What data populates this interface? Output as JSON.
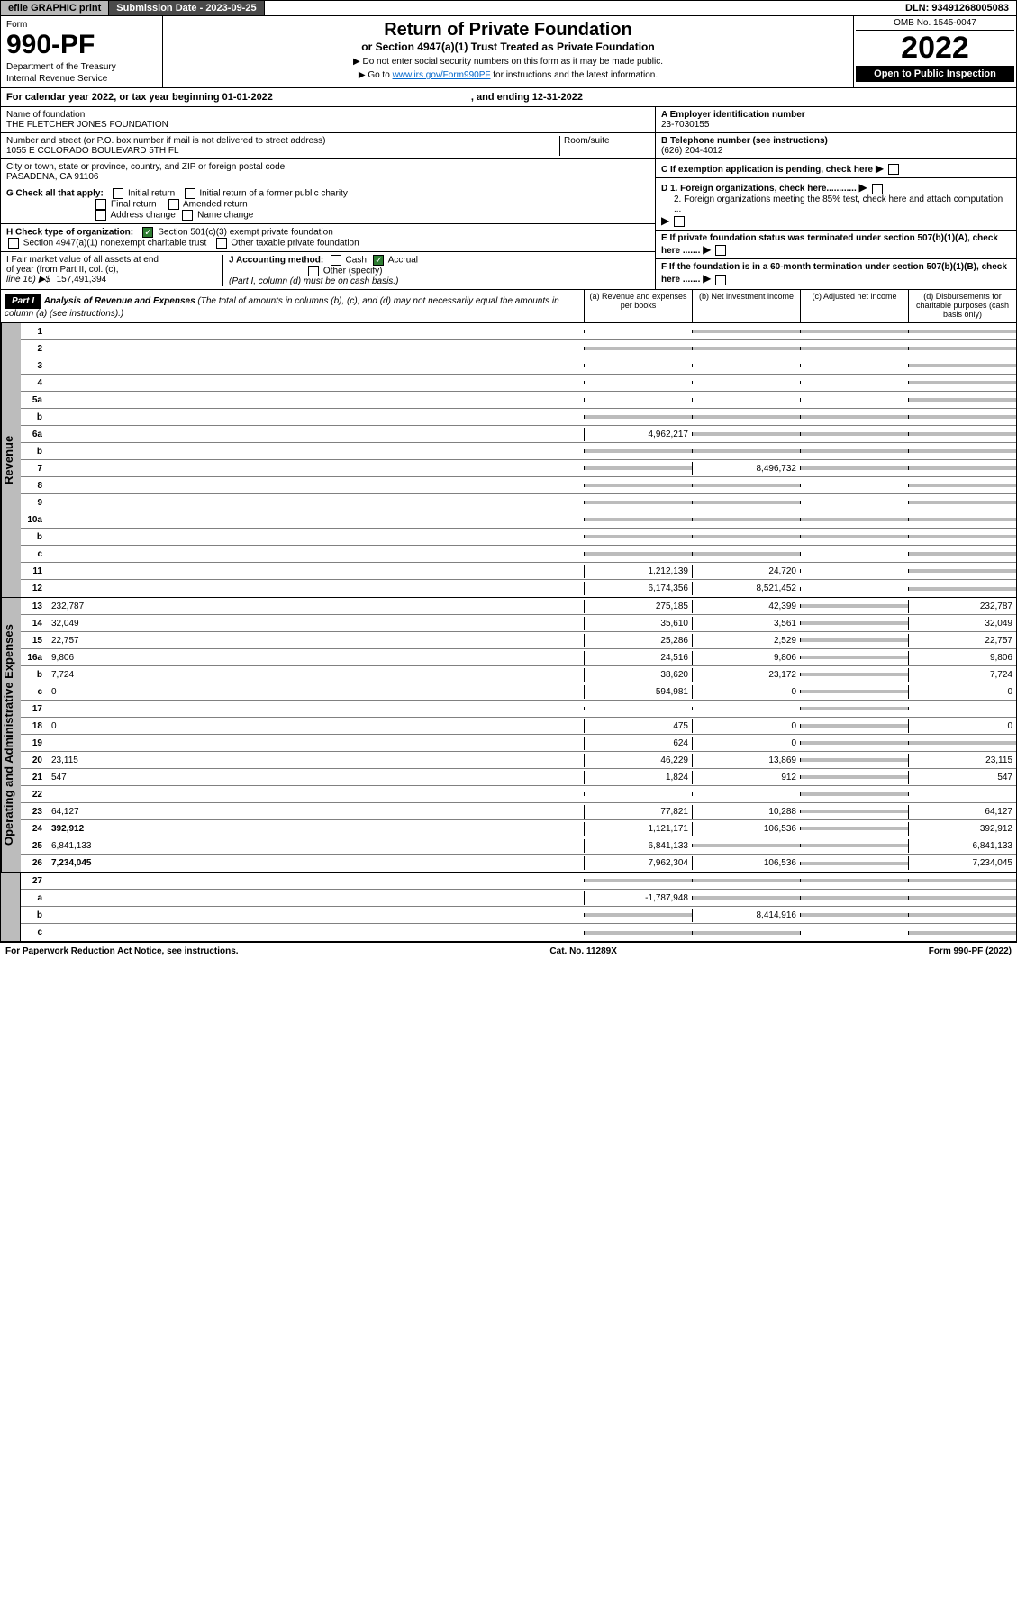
{
  "topbar": {
    "efile": "efile GRAPHIC print",
    "sub_label": "Submission Date - 2023-09-25",
    "dln": "DLN: 93491268005083"
  },
  "header": {
    "form_word": "Form",
    "form_num": "990-PF",
    "dept1": "Department of the Treasury",
    "dept2": "Internal Revenue Service",
    "title": "Return of Private Foundation",
    "subtitle": "or Section 4947(a)(1) Trust Treated as Private Foundation",
    "note1": "▶ Do not enter social security numbers on this form as it may be made public.",
    "note2_pre": "▶ Go to ",
    "note2_link": "www.irs.gov/Form990PF",
    "note2_post": " for instructions and the latest information.",
    "omb": "OMB No. 1545-0047",
    "year": "2022",
    "open": "Open to Public Inspection"
  },
  "cal": {
    "pre": "For calendar year 2022, or tax year beginning 01-01-2022",
    "end": ", and ending 12-31-2022"
  },
  "left": {
    "name_lbl": "Name of foundation",
    "name": "THE FLETCHER JONES FOUNDATION",
    "addr_lbl": "Number and street (or P.O. box number if mail is not delivered to street address)",
    "addr": "1055 E COLORADO BOULEVARD 5TH FL",
    "room_lbl": "Room/suite",
    "city_lbl": "City or town, state or province, country, and ZIP or foreign postal code",
    "city": "PASADENA, CA  91106",
    "g_lbl": "G Check all that apply:",
    "g_opts": [
      "Initial return",
      "Final return",
      "Address change",
      "Initial return of a former public charity",
      "Amended return",
      "Name change"
    ],
    "h_lbl": "H Check type of organization:",
    "h_opt1": "Section 501(c)(3) exempt private foundation",
    "h_opt2": "Section 4947(a)(1) nonexempt charitable trust",
    "h_opt3": "Other taxable private foundation",
    "i_lbl1": "I Fair market value of all assets at end",
    "i_lbl2": "of year (from Part II, col. (c),",
    "i_lbl3": "line 16) ▶$ ",
    "i_val": "157,491,394",
    "j_lbl": "J Accounting method:",
    "j_cash": "Cash",
    "j_accrual": "Accrual",
    "j_other": "Other (specify)",
    "j_note": "(Part I, column (d) must be on cash basis.)"
  },
  "right": {
    "a_lbl": "A Employer identification number",
    "a_val": "23-7030155",
    "b_lbl": "B Telephone number (see instructions)",
    "b_val": "(626) 204-4012",
    "c_lbl": "C If exemption application is pending, check here",
    "d1_lbl": "D 1. Foreign organizations, check here............",
    "d2_lbl": "2. Foreign organizations meeting the 85% test, check here and attach computation ...",
    "e_lbl": "E  If private foundation status was terminated under section 507(b)(1)(A), check here .......",
    "f_lbl": "F  If the foundation is in a 60-month termination under section 507(b)(1)(B), check here ......."
  },
  "part1": {
    "hdr": "Part I",
    "title": "Analysis of Revenue and Expenses",
    "title_note": " (The total of amounts in columns (b), (c), and (d) may not necessarily equal the amounts in column (a) (see instructions).)",
    "cols": [
      "(a)   Revenue and expenses per books",
      "(b)   Net investment income",
      "(c)   Adjusted net income",
      "(d)   Disbursements for charitable purposes (cash basis only)"
    ]
  },
  "revenue_label": "Revenue",
  "expense_label": "Operating and Administrative Expenses",
  "rows_rev": [
    {
      "n": "1",
      "d": "",
      "a": "",
      "b": "",
      "c": "",
      "sh": [
        "",
        "c",
        "c",
        "c"
      ]
    },
    {
      "n": "2",
      "d": "",
      "a": "",
      "b": "",
      "c": "",
      "sh": [
        "c",
        "c",
        "c",
        "c"
      ]
    },
    {
      "n": "3",
      "d": "",
      "a": "",
      "b": "",
      "c": "",
      "sh": [
        "",
        "",
        "",
        "c"
      ]
    },
    {
      "n": "4",
      "d": "",
      "a": "",
      "b": "",
      "c": "",
      "sh": [
        "",
        "",
        "",
        "c"
      ]
    },
    {
      "n": "5a",
      "d": "",
      "a": "",
      "b": "",
      "c": "",
      "sh": [
        "",
        "",
        "",
        "c"
      ]
    },
    {
      "n": "b",
      "d": "",
      "a": "",
      "b": "",
      "c": "",
      "sh": [
        "c",
        "c",
        "c",
        "c"
      ]
    },
    {
      "n": "6a",
      "d": "",
      "a": "4,962,217",
      "b": "",
      "c": "",
      "sh": [
        "",
        "c",
        "c",
        "c"
      ]
    },
    {
      "n": "b",
      "d": "",
      "a": "",
      "b": "",
      "c": "",
      "sh": [
        "c",
        "c",
        "c",
        "c"
      ]
    },
    {
      "n": "7",
      "d": "",
      "a": "",
      "b": "8,496,732",
      "c": "",
      "sh": [
        "c",
        "",
        "c",
        "c"
      ]
    },
    {
      "n": "8",
      "d": "",
      "a": "",
      "b": "",
      "c": "",
      "sh": [
        "c",
        "c",
        "",
        "c"
      ]
    },
    {
      "n": "9",
      "d": "",
      "a": "",
      "b": "",
      "c": "",
      "sh": [
        "c",
        "c",
        "",
        "c"
      ]
    },
    {
      "n": "10a",
      "d": "",
      "a": "",
      "b": "",
      "c": "",
      "sh": [
        "c",
        "c",
        "c",
        "c"
      ]
    },
    {
      "n": "b",
      "d": "",
      "a": "",
      "b": "",
      "c": "",
      "sh": [
        "c",
        "c",
        "c",
        "c"
      ]
    },
    {
      "n": "c",
      "d": "",
      "a": "",
      "b": "",
      "c": "",
      "sh": [
        "c",
        "c",
        "",
        "c"
      ]
    },
    {
      "n": "11",
      "d": "",
      "a": "1,212,139",
      "b": "24,720",
      "c": "",
      "sh": [
        "",
        "",
        "",
        "c"
      ]
    },
    {
      "n": "12",
      "d": "",
      "a": "6,174,356",
      "b": "8,521,452",
      "c": "",
      "sh": [
        "",
        "",
        "",
        "c"
      ],
      "bold": true
    }
  ],
  "rows_exp": [
    {
      "n": "13",
      "d": "232,787",
      "a": "275,185",
      "b": "42,399",
      "c": "",
      "sh": [
        "",
        "",
        "c",
        ""
      ]
    },
    {
      "n": "14",
      "d": "32,049",
      "a": "35,610",
      "b": "3,561",
      "c": "",
      "sh": [
        "",
        "",
        "c",
        ""
      ]
    },
    {
      "n": "15",
      "d": "22,757",
      "a": "25,286",
      "b": "2,529",
      "c": "",
      "sh": [
        "",
        "",
        "c",
        ""
      ]
    },
    {
      "n": "16a",
      "d": "9,806",
      "a": "24,516",
      "b": "9,806",
      "c": "",
      "sh": [
        "",
        "",
        "c",
        ""
      ]
    },
    {
      "n": "b",
      "d": "7,724",
      "a": "38,620",
      "b": "23,172",
      "c": "",
      "sh": [
        "",
        "",
        "c",
        ""
      ]
    },
    {
      "n": "c",
      "d": "0",
      "a": "594,981",
      "b": "0",
      "c": "",
      "sh": [
        "",
        "",
        "c",
        ""
      ]
    },
    {
      "n": "17",
      "d": "",
      "a": "",
      "b": "",
      "c": "",
      "sh": [
        "",
        "",
        "c",
        ""
      ]
    },
    {
      "n": "18",
      "d": "0",
      "a": "475",
      "b": "0",
      "c": "",
      "sh": [
        "",
        "",
        "c",
        ""
      ]
    },
    {
      "n": "19",
      "d": "",
      "a": "624",
      "b": "0",
      "c": "",
      "sh": [
        "",
        "",
        "c",
        "c"
      ]
    },
    {
      "n": "20",
      "d": "23,115",
      "a": "46,229",
      "b": "13,869",
      "c": "",
      "sh": [
        "",
        "",
        "c",
        ""
      ]
    },
    {
      "n": "21",
      "d": "547",
      "a": "1,824",
      "b": "912",
      "c": "",
      "sh": [
        "",
        "",
        "c",
        ""
      ]
    },
    {
      "n": "22",
      "d": "",
      "a": "",
      "b": "",
      "c": "",
      "sh": [
        "",
        "",
        "c",
        ""
      ]
    },
    {
      "n": "23",
      "d": "64,127",
      "a": "77,821",
      "b": "10,288",
      "c": "",
      "sh": [
        "",
        "",
        "c",
        ""
      ]
    },
    {
      "n": "24",
      "d": "392,912",
      "a": "1,121,171",
      "b": "106,536",
      "c": "",
      "sh": [
        "",
        "",
        "c",
        ""
      ],
      "bold": true
    },
    {
      "n": "25",
      "d": "6,841,133",
      "a": "6,841,133",
      "b": "",
      "c": "",
      "sh": [
        "",
        "c",
        "c",
        ""
      ]
    },
    {
      "n": "26",
      "d": "7,234,045",
      "a": "7,962,304",
      "b": "106,536",
      "c": "",
      "sh": [
        "",
        "",
        "c",
        ""
      ],
      "bold": true
    }
  ],
  "rows_end": [
    {
      "n": "27",
      "d": "",
      "a": "",
      "b": "",
      "c": "",
      "sh": [
        "c",
        "c",
        "c",
        "c"
      ]
    },
    {
      "n": "a",
      "d": "",
      "a": "-1,787,948",
      "b": "",
      "c": "",
      "sh": [
        "",
        "c",
        "c",
        "c"
      ],
      "bold": true
    },
    {
      "n": "b",
      "d": "",
      "a": "",
      "b": "8,414,916",
      "c": "",
      "sh": [
        "c",
        "",
        "c",
        "c"
      ],
      "bold": true
    },
    {
      "n": "c",
      "d": "",
      "a": "",
      "b": "",
      "c": "",
      "sh": [
        "c",
        "c",
        "",
        "c"
      ],
      "bold": true
    }
  ],
  "footer": {
    "left": "For Paperwork Reduction Act Notice, see instructions.",
    "mid": "Cat. No. 11289X",
    "right": "Form 990-PF (2022)"
  }
}
